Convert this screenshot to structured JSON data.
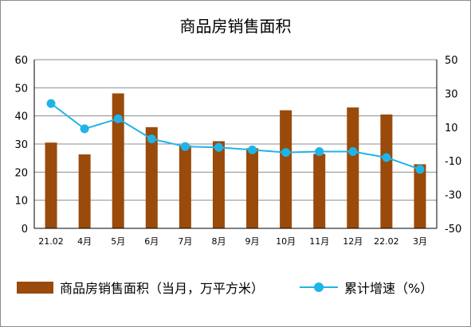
{
  "chart_data": {
    "type": "bar",
    "title": "商品房销售面积",
    "categories": [
      "21.02",
      "4月",
      "5月",
      "6月",
      "7月",
      "8月",
      "9月",
      "10月",
      "11月",
      "12月",
      "22.02",
      "3月"
    ],
    "series": [
      {
        "name": "商品房销售面积（当月，万平方米）",
        "type": "bar",
        "axis": "left",
        "color": "#9a4a0a",
        "values": [
          30.5,
          26.3,
          48.0,
          36.0,
          29.5,
          31.0,
          28.5,
          42.0,
          26.5,
          43.0,
          40.5,
          22.8
        ]
      },
      {
        "name": "累计增速（%）",
        "type": "line",
        "axis": "right",
        "color": "#1fb4e8",
        "values": [
          24.0,
          9.0,
          15.0,
          3.0,
          -1.5,
          -2.0,
          -3.5,
          -5.0,
          -4.5,
          -4.5,
          -8.0,
          -15.0
        ]
      }
    ],
    "y_left": {
      "min": 0,
      "max": 60,
      "ticks": [
        0,
        10,
        20,
        30,
        40,
        50,
        60
      ]
    },
    "y_right": {
      "min": -50,
      "max": 50,
      "ticks": [
        -50,
        -30,
        -10,
        10,
        30,
        50
      ]
    },
    "grid": true,
    "legend_position": "bottom"
  }
}
